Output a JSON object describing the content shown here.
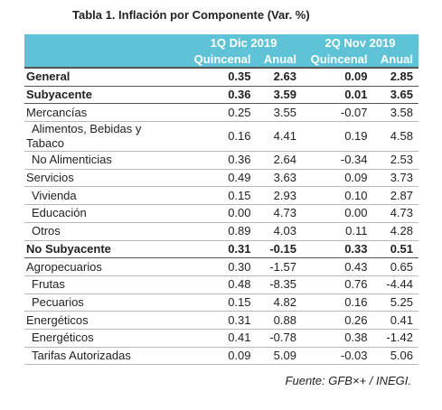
{
  "title": "Tabla 1. Inflación por Componente (Var. %)",
  "header": {
    "groups": [
      "1Q Dic 2019",
      "2Q Nov 2019"
    ],
    "subheaders": [
      "Quincenal",
      "Anual",
      "Quincenal",
      "Anual"
    ]
  },
  "rows": [
    {
      "label": "General",
      "cells": [
        "0.35",
        "2.63",
        "0.09",
        "2.85"
      ],
      "bold": true,
      "indent": 0
    },
    {
      "label": "Subyacente",
      "cells": [
        "0.36",
        "3.59",
        "0.01",
        "3.65"
      ],
      "bold": true,
      "indent": 0
    },
    {
      "label": "Mercancías",
      "cells": [
        "0.25",
        "3.55",
        "-0.07",
        "3.58"
      ],
      "bold": false,
      "indent": 0
    },
    {
      "label": "Alimentos, Bebidas y Tabaco",
      "cells": [
        "0.16",
        "4.41",
        "0.19",
        "4.58"
      ],
      "bold": false,
      "indent": 1
    },
    {
      "label": "No Alimenticias",
      "cells": [
        "0.36",
        "2.64",
        "-0.34",
        "2.53"
      ],
      "bold": false,
      "indent": 1
    },
    {
      "label": "Servicios",
      "cells": [
        "0.49",
        "3.63",
        "0.09",
        "3.73"
      ],
      "bold": false,
      "indent": 0
    },
    {
      "label": "Vivienda",
      "cells": [
        "0.15",
        "2.93",
        "0.10",
        "2.87"
      ],
      "bold": false,
      "indent": 1
    },
    {
      "label": "Educación",
      "cells": [
        "0.00",
        "4.73",
        "0.00",
        "4.73"
      ],
      "bold": false,
      "indent": 1
    },
    {
      "label": "Otros",
      "cells": [
        "0.89",
        "4.03",
        "0.11",
        "4.28"
      ],
      "bold": false,
      "indent": 1
    },
    {
      "label": "No Subyacente",
      "cells": [
        "0.31",
        "-0.15",
        "0.33",
        "0.51"
      ],
      "bold": true,
      "indent": 0
    },
    {
      "label": "Agropecuarios",
      "cells": [
        "0.30",
        "-1.57",
        "0.43",
        "0.65"
      ],
      "bold": false,
      "indent": 0
    },
    {
      "label": "Frutas",
      "cells": [
        "0.48",
        "-8.35",
        "0.76",
        "-4.44"
      ],
      "bold": false,
      "indent": 1
    },
    {
      "label": "Pecuarios",
      "cells": [
        "0.15",
        "4.82",
        "0.16",
        "5.25"
      ],
      "bold": false,
      "indent": 1
    },
    {
      "label": "Energéticos",
      "cells": [
        "0.31",
        "0.88",
        "0.26",
        "0.41"
      ],
      "bold": false,
      "indent": 0
    },
    {
      "label": "Energéticos",
      "cells": [
        "0.41",
        "-0.78",
        "0.38",
        "-1.42"
      ],
      "bold": false,
      "indent": 1
    },
    {
      "label": "Tarifas Autorizadas",
      "cells": [
        "0.09",
        "5.09",
        "-0.03",
        "5.06"
      ],
      "bold": false,
      "indent": 1
    }
  ],
  "source": "Fuente: GFB×+ /  INEGI."
}
